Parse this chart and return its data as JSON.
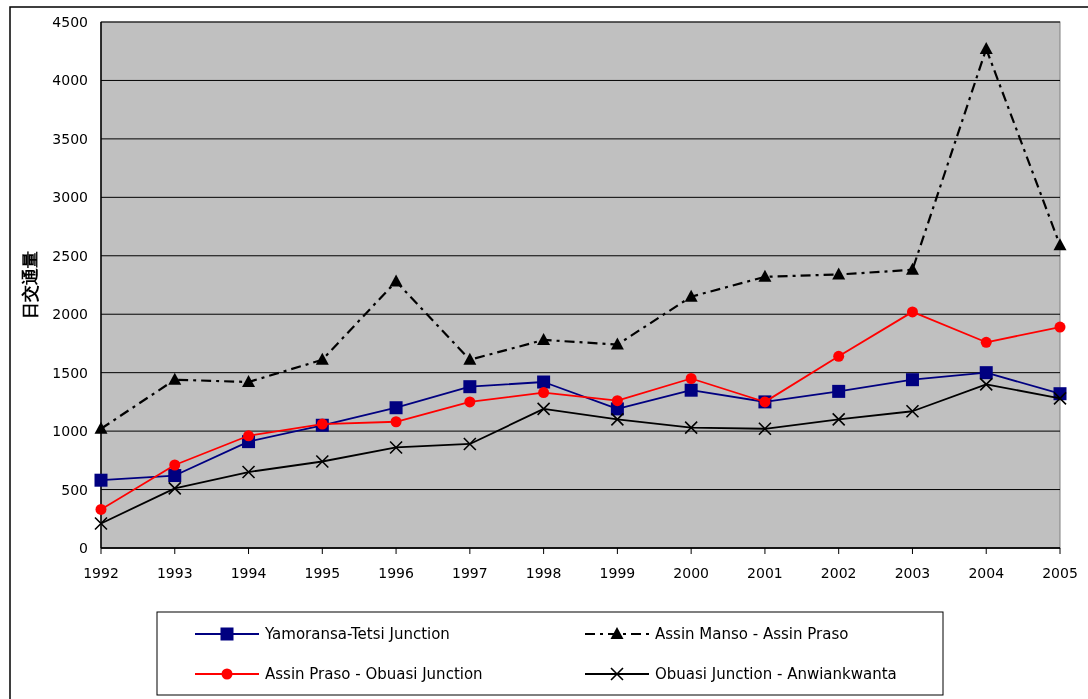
{
  "chart_data": {
    "type": "line",
    "ylabel": "日交通量",
    "x": [
      1992,
      1993,
      1994,
      1995,
      1996,
      1997,
      1998,
      1999,
      2000,
      2001,
      2002,
      2003,
      2004,
      2005
    ],
    "xlim": [
      1992,
      2005
    ],
    "xticks": [
      1992,
      1993,
      1994,
      1995,
      1996,
      1997,
      1998,
      1999,
      2000,
      2001,
      2002,
      2003,
      2004,
      2005
    ],
    "ylim": [
      0,
      4500
    ],
    "yticks": [
      0,
      500,
      1000,
      1500,
      2000,
      2500,
      3000,
      3500,
      4000,
      4500
    ],
    "grid": "y",
    "legend": "bottom",
    "series": [
      {
        "name": "Yamoransa-Tetsi Junction",
        "color": "#000080",
        "marker": "square",
        "line_style": "solid",
        "values": [
          580,
          620,
          910,
          1050,
          1200,
          1380,
          1420,
          1190,
          1350,
          1250,
          1340,
          1440,
          1500,
          1320
        ]
      },
      {
        "name": "Assin Manso - Assin Praso",
        "color": "#000000",
        "marker": "triangle",
        "line_style": "dashed",
        "values": [
          1020,
          1440,
          1420,
          1610,
          2280,
          1610,
          1780,
          1740,
          2150,
          2320,
          2340,
          2380,
          4270,
          2590
        ]
      },
      {
        "name": "Assin Praso - Obuasi Junction",
        "color": "#ff0000",
        "marker": "circle",
        "line_style": "solid",
        "values": [
          330,
          710,
          960,
          1060,
          1080,
          1250,
          1330,
          1260,
          1450,
          1250,
          1640,
          2020,
          1760,
          1890
        ]
      },
      {
        "name": "Obuasi Junction - Anwiankwanta",
        "color": "#000000",
        "marker": "cross",
        "line_style": "solid",
        "values": [
          210,
          510,
          650,
          740,
          860,
          890,
          1190,
          1100,
          1030,
          1020,
          1100,
          1170,
          1400,
          1280
        ]
      }
    ]
  }
}
